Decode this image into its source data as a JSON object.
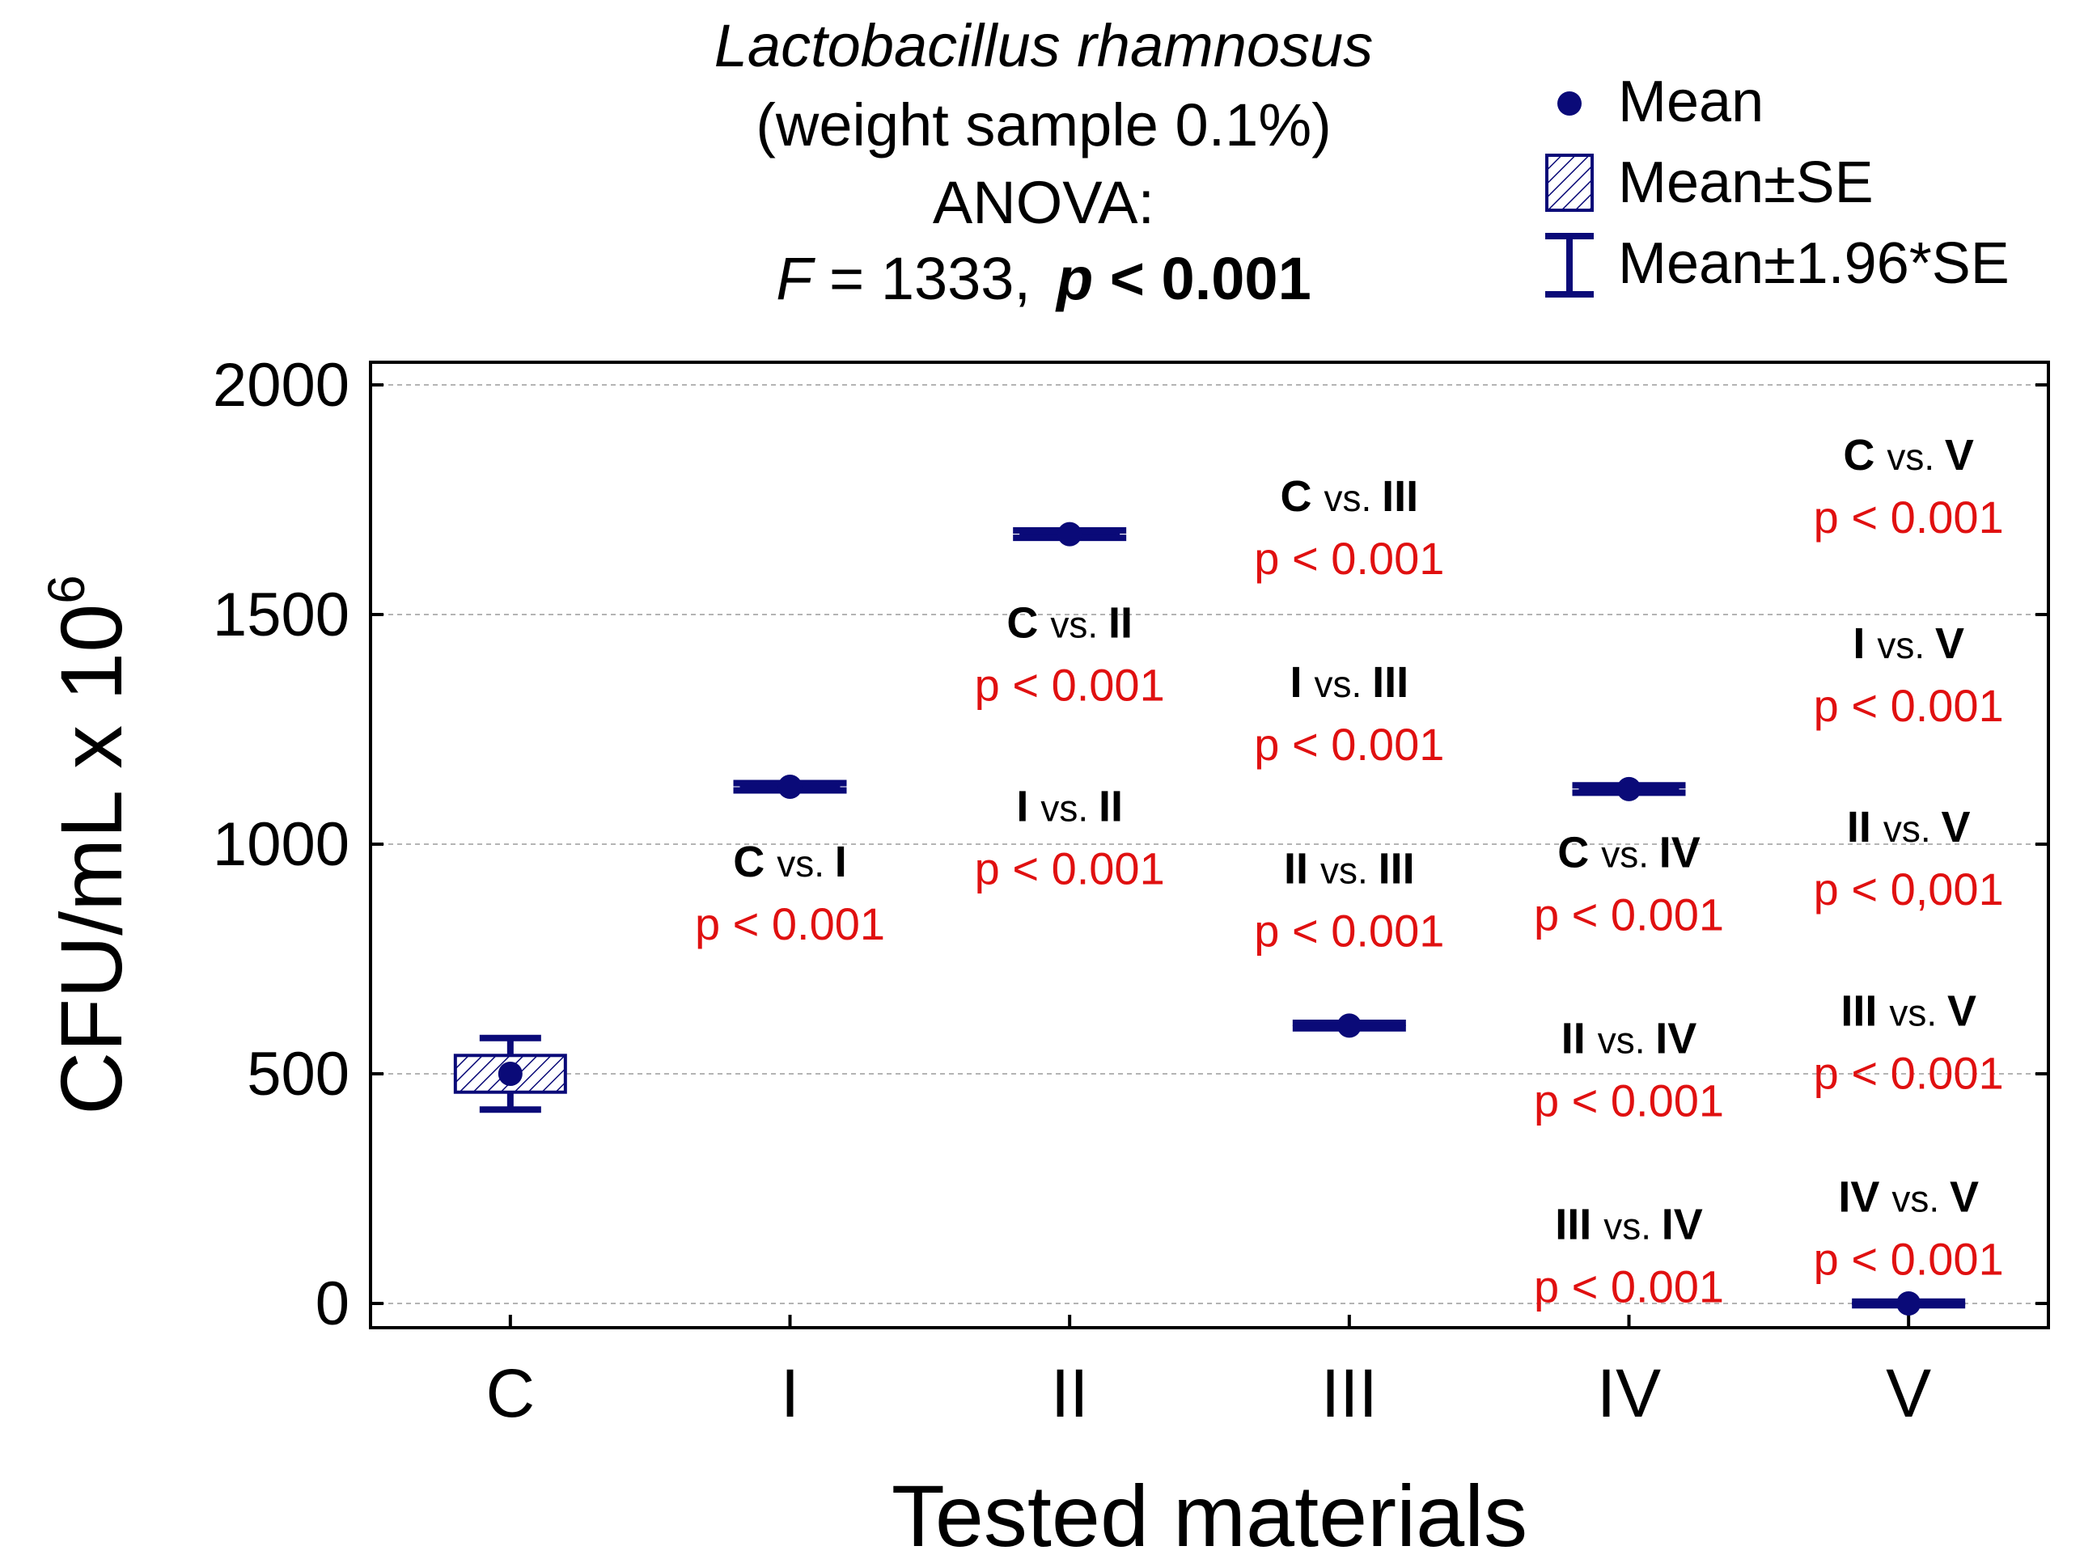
{
  "chart_data": {
    "type": "box",
    "title": {
      "line1": "Lactobacillus rhamnosus",
      "line2": "(weight sample 0.1%)",
      "line3": "ANOVA:",
      "stat_prefix": "F",
      "stat_rest": " = 1333,",
      "p_prefix": "p",
      "p_rest": " < 0.001"
    },
    "xlabel": "Tested materials",
    "ylabel": "CFU/mL x 10",
    "ylabel_sup": "6",
    "ylim": [
      -50,
      2000
    ],
    "yticks": [
      0,
      500,
      1000,
      1500,
      2000
    ],
    "grid": true,
    "legend": {
      "position": "top-right",
      "items": [
        {
          "name": "mean",
          "label": "Mean"
        },
        {
          "name": "se",
          "label": "Mean±SE"
        },
        {
          "name": "ci",
          "label": "Mean±1.96*SE"
        }
      ]
    },
    "series": [
      {
        "category": "C",
        "mean": 500,
        "se": 40,
        "ci": 78
      },
      {
        "category": "I",
        "mean": 1125,
        "se": 4,
        "ci": 8
      },
      {
        "category": "II",
        "mean": 1675,
        "se": 4,
        "ci": 8
      },
      {
        "category": "III",
        "mean": 605,
        "se": 3,
        "ci": 6
      },
      {
        "category": "IV",
        "mean": 1120,
        "se": 4,
        "ci": 8
      },
      {
        "category": "V",
        "mean": 0,
        "se": 2,
        "ci": 4
      }
    ],
    "comparisons": [
      {
        "col": "I",
        "y": 930,
        "a": "C",
        "b": "I",
        "p": "p < 0.001"
      },
      {
        "col": "II",
        "y": 1450,
        "a": "C",
        "b": "II",
        "p": "p < 0.001"
      },
      {
        "col": "II",
        "y": 1050,
        "a": "I",
        "b": "II",
        "p": "p < 0.001"
      },
      {
        "col": "III",
        "y": 1725,
        "a": "C",
        "b": "III",
        "p": "p < 0.001"
      },
      {
        "col": "III",
        "y": 1320,
        "a": "I",
        "b": "III",
        "p": "p < 0.001"
      },
      {
        "col": "III",
        "y": 915,
        "a": "II",
        "b": "III",
        "p": "p < 0.001"
      },
      {
        "col": "IV",
        "y": 950,
        "a": "C",
        "b": "IV",
        "p": "p < 0.001"
      },
      {
        "col": "IV",
        "y": 545,
        "a": "II",
        "b": "IV",
        "p": "p < 0.001"
      },
      {
        "col": "IV",
        "y": 140,
        "a": "III",
        "b": "IV",
        "p": "p < 0.001"
      },
      {
        "col": "V",
        "y": 1815,
        "a": "C",
        "b": "V",
        "p": "p < 0.001"
      },
      {
        "col": "V",
        "y": 1405,
        "a": "I",
        "b": "V",
        "p": "p < 0.001"
      },
      {
        "col": "V",
        "y": 1005,
        "a": "II",
        "b": "V",
        "p": "p < 0,001"
      },
      {
        "col": "V",
        "y": 605,
        "a": "III",
        "b": "V",
        "p": "p < 0.001"
      },
      {
        "col": "V",
        "y": 200,
        "a": "IV",
        "b": "V",
        "p": "p < 0.001"
      }
    ],
    "vs_text": "vs.",
    "colors": {
      "marker": "#0a0a78",
      "p_value": "#e01010",
      "text": "#000000",
      "grid": "#b4b4b4"
    }
  }
}
